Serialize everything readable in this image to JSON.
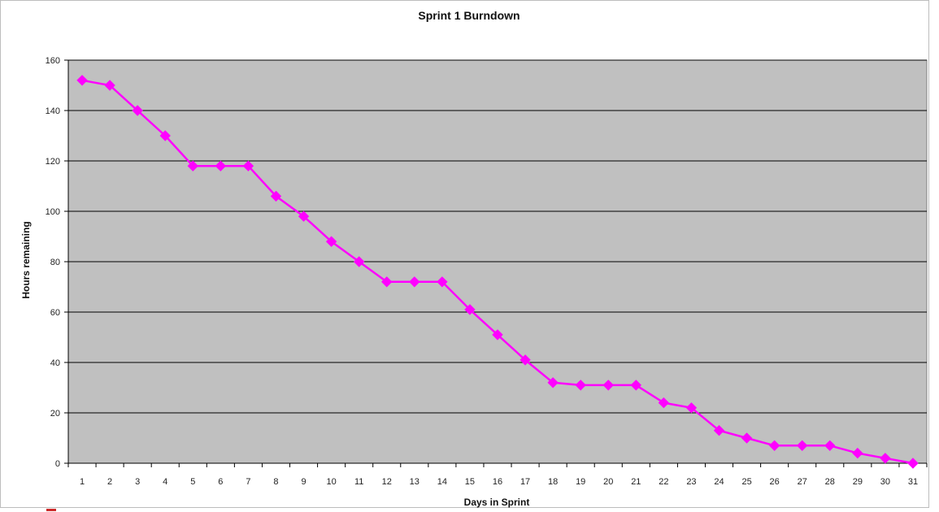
{
  "chart_data": {
    "type": "line",
    "title": "Sprint 1 Burndown",
    "xlabel": "Days in Sprint",
    "ylabel": "Hours remaining",
    "ylim": [
      0,
      160
    ],
    "yticks": [
      0,
      20,
      40,
      60,
      80,
      100,
      120,
      140,
      160
    ],
    "grid": true,
    "legend": "none",
    "plot_background": "#c0c0c0",
    "line_color": "#ff00ff",
    "marker": "diamond",
    "categories": [
      "1",
      "2",
      "3",
      "4",
      "5",
      "6",
      "7",
      "8",
      "9",
      "10",
      "11",
      "12",
      "13",
      "14",
      "15",
      "16",
      "17",
      "18",
      "19",
      "20",
      "21",
      "22",
      "23",
      "24",
      "25",
      "26",
      "27",
      "28",
      "29",
      "30",
      "31"
    ],
    "series": [
      {
        "values": [
          152,
          150,
          140,
          130,
          118,
          118,
          118,
          106,
          98,
          88,
          80,
          72,
          72,
          72,
          61,
          51,
          41,
          32,
          31,
          31,
          31,
          24,
          22,
          13,
          10,
          7,
          7,
          7,
          4,
          2,
          0
        ]
      }
    ]
  }
}
